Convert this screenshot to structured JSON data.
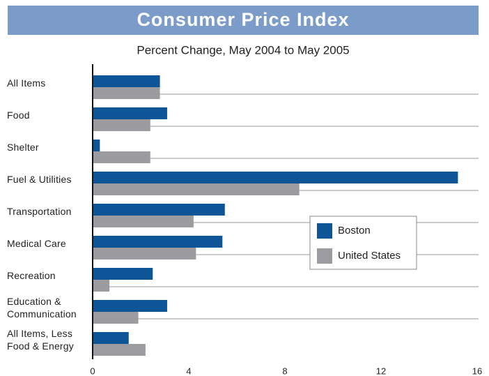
{
  "chart_data": {
    "type": "hbar",
    "title": "Consumer Price Index",
    "subtitle": "Percent Change, May 2004 to May 2005",
    "categories": [
      "All Items",
      "Food",
      "Shelter",
      "Fuel & Utilities",
      "Transportation",
      "Medical Care",
      "Recreation",
      "Education & Communication",
      "All Items, Less Food & Energy"
    ],
    "series": [
      {
        "name": "Boston",
        "color": "#0d5596",
        "values": [
          2.8,
          3.1,
          0.3,
          15.2,
          5.5,
          5.4,
          2.5,
          3.1,
          1.5
        ]
      },
      {
        "name": "United States",
        "color": "#9c9ca0",
        "values": [
          2.8,
          2.4,
          2.4,
          8.6,
          4.2,
          4.3,
          0.7,
          1.9,
          2.2
        ]
      }
    ],
    "xlim": [
      0,
      16
    ],
    "xticks": [
      0,
      4,
      8,
      12,
      16
    ],
    "legend": "right"
  }
}
